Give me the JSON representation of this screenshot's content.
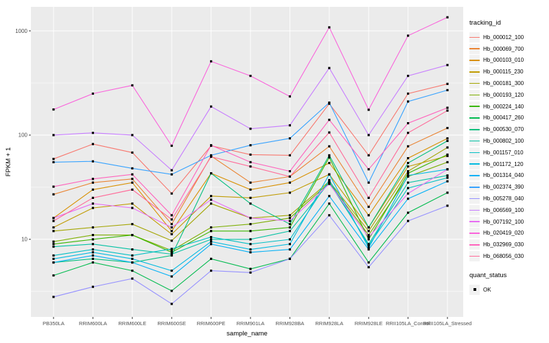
{
  "legend": {
    "tracking_title": "tracking_id",
    "quant_title": "quant_status",
    "quant_items": [
      {
        "label": "OK",
        "marker_color": "#000000"
      }
    ]
  },
  "chart_data": {
    "type": "line",
    "title": "",
    "xlabel": "sample_name",
    "ylabel": "FPKM + 1",
    "y_scale": "log10",
    "ylim": [
      1.8,
      1700
    ],
    "y_ticks": [
      10,
      100,
      1000
    ],
    "y_minor_ticks": [
      3.1623,
      31.623,
      316.23
    ],
    "grid": true,
    "legend_position": "right",
    "panel_bg": "#EBEBEB",
    "grid_color": "#FFFFFF",
    "point_color": "#000000",
    "categories": [
      "PB350LA",
      "RRIM600LA",
      "RRIM600LE",
      "RRIM600SE",
      "RRIM600PE",
      "RRIM901LA",
      "RRIM928BA",
      "RRIM928LA",
      "RRIM928LE",
      "RRII105LA_Control",
      "RRII105LA_Stressed"
    ],
    "series": [
      {
        "name": "Hb_000012_100",
        "color": "#F8766D",
        "values": [
          59,
          82,
          68,
          27.5,
          79,
          65,
          64,
          200,
          64,
          250,
          310
        ]
      },
      {
        "name": "Hb_000069_700",
        "color": "#EA8331",
        "values": [
          27,
          35,
          38,
          14,
          63,
          35,
          40,
          78,
          20.5,
          78,
          117
        ]
      },
      {
        "name": "Hb_000103_010",
        "color": "#D89000",
        "values": [
          16,
          30,
          35,
          12,
          43,
          30,
          35,
          54,
          17,
          60,
          93
        ]
      },
      {
        "name": "Hb_000115_230",
        "color": "#C09B00",
        "values": [
          13,
          20,
          22,
          11.2,
          26,
          25,
          28,
          42,
          13,
          50,
          63
        ]
      },
      {
        "name": "Hb_000181_300",
        "color": "#A3A500",
        "values": [
          12,
          13,
          14,
          9.7,
          22,
          16,
          17,
          36,
          12,
          45,
          76
        ]
      },
      {
        "name": "Hb_000193_120",
        "color": "#7CAE00",
        "values": [
          9.5,
          11,
          11,
          7.8,
          13,
          14,
          16,
          35,
          11,
          40,
          55
        ]
      },
      {
        "name": "Hb_000224_140",
        "color": "#39B600",
        "values": [
          9,
          10,
          11,
          7.5,
          12,
          12,
          13,
          61,
          10,
          43,
          65
        ]
      },
      {
        "name": "Hb_000417_260",
        "color": "#00BB4E",
        "values": [
          4.5,
          6,
          5,
          3.2,
          6.5,
          5.2,
          6.5,
          22,
          6,
          18,
          28
        ]
      },
      {
        "name": "Hb_000530_070",
        "color": "#00BF7D",
        "values": [
          6,
          6.5,
          6,
          7,
          43,
          22,
          14,
          64,
          13,
          54,
          88
        ]
      },
      {
        "name": "Hb_000802_100",
        "color": "#00C1A3",
        "values": [
          8.5,
          9,
          8,
          7.2,
          10,
          10,
          12,
          35,
          9,
          35,
          41
        ]
      },
      {
        "name": "Hb_001157_010",
        "color": "#00BFC4",
        "values": [
          7,
          8,
          7,
          8.1,
          10.5,
          9,
          10,
          37,
          8.7,
          31,
          39
        ]
      },
      {
        "name": "Hb_001172_120",
        "color": "#00BAE0",
        "values": [
          6.5,
          7.5,
          6.5,
          5,
          9.5,
          8,
          9,
          42,
          8.3,
          41,
          47
        ]
      },
      {
        "name": "Hb_001314_040",
        "color": "#00B0F6",
        "values": [
          6,
          7,
          6,
          4.4,
          9,
          7.5,
          8,
          26,
          8,
          24.5,
          36
        ]
      },
      {
        "name": "Hb_002374_390",
        "color": "#35A2FF",
        "values": [
          55,
          56,
          48,
          42,
          64,
          80,
          93,
          205,
          35,
          210,
          270
        ]
      },
      {
        "name": "Hb_005278_040",
        "color": "#9590FF",
        "values": [
          2.8,
          3.5,
          4.2,
          2.4,
          5,
          4.8,
          6.5,
          17,
          5.4,
          15,
          21
        ]
      },
      {
        "name": "Hb_006569_100",
        "color": "#C77CFF",
        "values": [
          100,
          105,
          100,
          46,
          188,
          115,
          124,
          440,
          100,
          370,
          470
        ]
      },
      {
        "name": "Hb_007192_100",
        "color": "#E76BF3",
        "values": [
          16,
          22,
          20,
          13,
          24,
          16,
          15,
          34,
          10.5,
          27.5,
          47
        ]
      },
      {
        "name": "Hb_020419_020",
        "color": "#FA62DB",
        "values": [
          176,
          250,
          300,
          79,
          510,
          370,
          235,
          1080,
          175,
          900,
          1350
        ]
      },
      {
        "name": "Hb_032969_030",
        "color": "#FF62BC",
        "values": [
          32,
          38,
          42,
          17,
          80,
          55,
          45,
          140,
          47,
          130,
          183
        ]
      },
      {
        "name": "Hb_068056_030",
        "color": "#FF6A98",
        "values": [
          15,
          25,
          30,
          15.5,
          62,
          50,
          40,
          106,
          25,
          105,
          172
        ]
      }
    ]
  }
}
